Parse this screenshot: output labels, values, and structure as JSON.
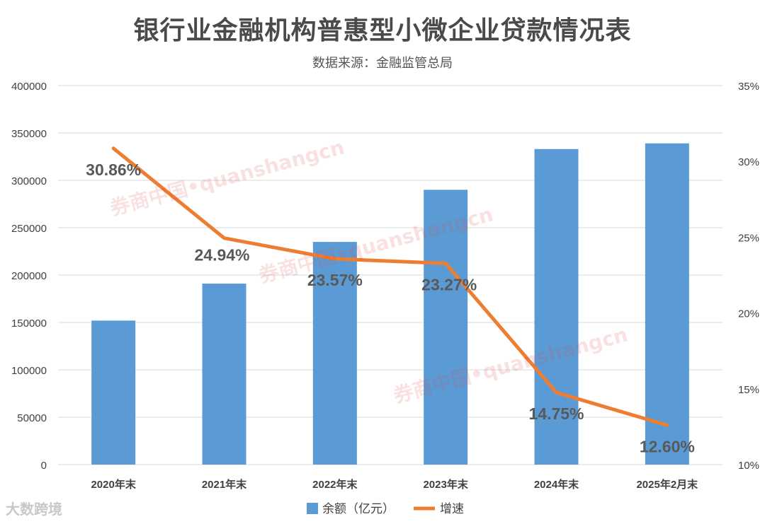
{
  "title": "银行业金融机构普惠型小微企业贷款情况表",
  "subtitle": "数据来源：金融监管总局",
  "watermark": "券商中国•quanshangcn",
  "corner_logo": "大数跨境",
  "colors": {
    "bar": "#5b9bd5",
    "line": "#ed7d31",
    "grid": "#d9d9d9",
    "axis_text": "#404040",
    "label_text": "#595959"
  },
  "chart_data": {
    "type": "bar",
    "title": "银行业金融机构普惠型小微企业贷款情况表",
    "subtitle": "数据来源：金融监管总局",
    "categories": [
      "2020年末",
      "2021年末",
      "2022年末",
      "2023年末",
      "2024年末",
      "2025年2月末"
    ],
    "series": [
      {
        "name": "余额（亿元）",
        "type": "bar",
        "axis": "left",
        "values": [
          152000,
          191000,
          235000,
          290000,
          333000,
          339000
        ]
      },
      {
        "name": "增速",
        "type": "line",
        "axis": "right",
        "values": [
          30.86,
          24.94,
          23.57,
          23.27,
          14.75,
          12.6
        ]
      }
    ],
    "data_labels": [
      "30.86%",
      "24.94%",
      "23.57%",
      "23.27%",
      "14.75%",
      "12.60%"
    ],
    "y_left": {
      "min": 0,
      "max": 400000,
      "ticks": [
        "0",
        "50000",
        "100000",
        "150000",
        "200000",
        "250000",
        "300000",
        "350000",
        "400000"
      ]
    },
    "y_right": {
      "min": 10,
      "max": 35,
      "ticks": [
        "10%",
        "15%",
        "20%",
        "25%",
        "30%",
        "35%"
      ]
    },
    "grid": true,
    "legend_position": "bottom"
  }
}
